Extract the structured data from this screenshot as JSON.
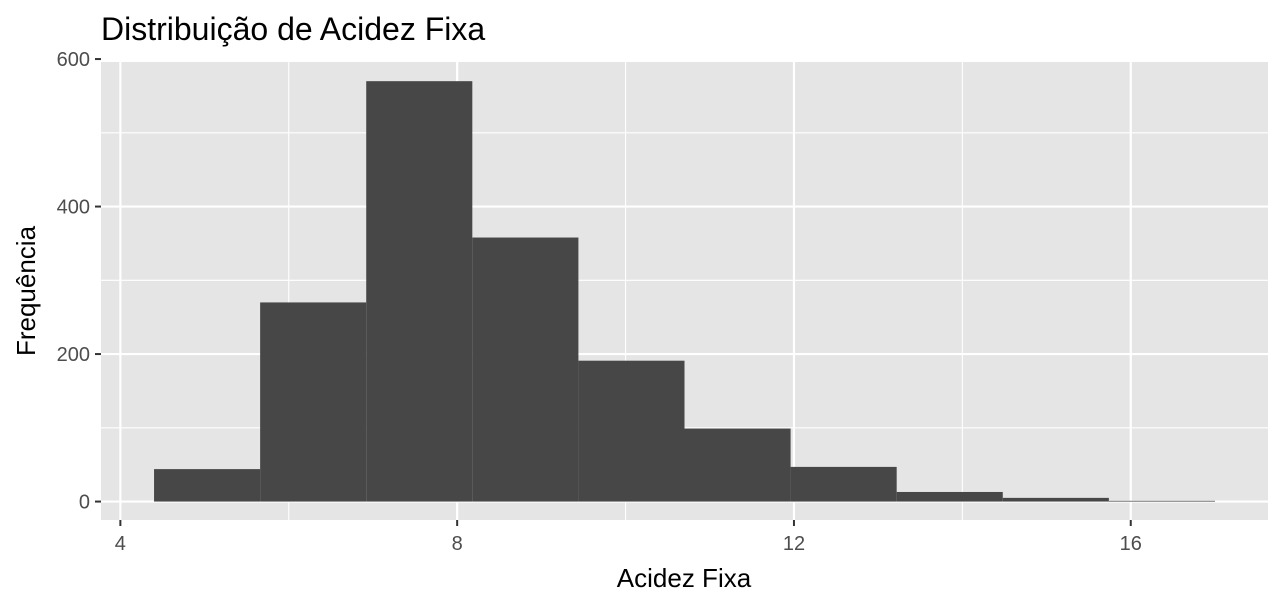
{
  "chart_data": {
    "type": "bar",
    "title": "Distribuição de Acidez Fixa",
    "xlabel": "Acidez Fixa",
    "ylabel": "Frequência",
    "xlim": [
      3.77,
      17.63
    ],
    "ylim": [
      -25,
      596
    ],
    "x_ticks": [
      4,
      8,
      12,
      16
    ],
    "x_minor_ticks": [
      6,
      10,
      14
    ],
    "y_ticks": [
      0,
      200,
      400,
      600
    ],
    "y_minor_ticks": [
      100,
      300,
      500
    ],
    "grid": true,
    "bins": [
      {
        "x0": 4.4,
        "x1": 5.66,
        "count": 44
      },
      {
        "x0": 5.66,
        "x1": 6.92,
        "count": 270
      },
      {
        "x0": 6.92,
        "x1": 8.18,
        "count": 570
      },
      {
        "x0": 8.18,
        "x1": 9.44,
        "count": 358
      },
      {
        "x0": 9.44,
        "x1": 10.7,
        "count": 191
      },
      {
        "x0": 10.7,
        "x1": 11.96,
        "count": 99
      },
      {
        "x0": 11.96,
        "x1": 13.22,
        "count": 47
      },
      {
        "x0": 13.22,
        "x1": 14.48,
        "count": 13
      },
      {
        "x0": 14.48,
        "x1": 15.74,
        "count": 5
      },
      {
        "x0": 15.74,
        "x1": 17.0,
        "count": 1
      }
    ],
    "colors": {
      "bar": "#474747",
      "panel": "#e5e5e5",
      "grid": "#ffffff",
      "tick_text": "#4d4d4d",
      "tick_mark": "#333333"
    }
  }
}
